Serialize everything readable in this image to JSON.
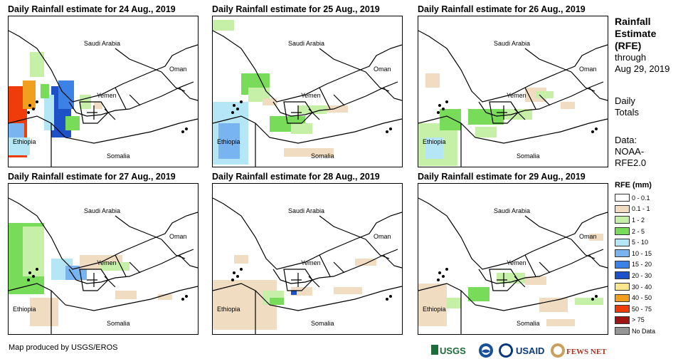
{
  "panels": [
    {
      "title": "Daily Rainfall estimate for 24 Aug., 2019"
    },
    {
      "title": "Daily Rainfall estimate for 25 Aug., 2019"
    },
    {
      "title": "Daily Rainfall estimate for 26 Aug., 2019"
    },
    {
      "title": "Daily Rainfall estimate for 27 Aug., 2019"
    },
    {
      "title": "Daily Rainfall estimate for 28 Aug., 2019"
    },
    {
      "title": "Daily Rainfall estimate for 29 Aug., 2019"
    }
  ],
  "map_labels": {
    "saudi": "Saudi Arabia",
    "oman": "Oman",
    "yemen": "Yemen",
    "ethiopia": "Ethiopia",
    "somalia": "Somalia"
  },
  "sidebar": {
    "title_line1": "Rainfall",
    "title_line2": "Estimate",
    "title_line3": "(RFE)",
    "through": "through",
    "date": "Aug 29, 2019",
    "daily": "Daily",
    "totals": "Totals",
    "data_label": "Data:",
    "data_source1": "NOAA-",
    "data_source2": "RFE2.0"
  },
  "legend": {
    "title": "RFE (mm)",
    "items": [
      {
        "label": "0 - 0.1",
        "color": "#ffffff"
      },
      {
        "label": "0.1 - 1",
        "color": "#f0dcc0"
      },
      {
        "label": "1 - 2",
        "color": "#c6f0a8"
      },
      {
        "label": "2 - 5",
        "color": "#78dc5a"
      },
      {
        "label": "5 - 10",
        "color": "#b4e6f5"
      },
      {
        "label": "10 - 15",
        "color": "#78b4f0"
      },
      {
        "label": "15 - 20",
        "color": "#3c82e6"
      },
      {
        "label": "20 - 30",
        "color": "#1e50c8"
      },
      {
        "label": "30 - 40",
        "color": "#fae68c"
      },
      {
        "label": "40 - 50",
        "color": "#f0a01e"
      },
      {
        "label": "50 - 75",
        "color": "#f03c0a"
      },
      {
        "label": "> 75",
        "color": "#a01414"
      },
      {
        "label": "No Data",
        "color": "#969696"
      }
    ]
  },
  "footer": {
    "credit": "Map produced by USGS/EROS",
    "logos": [
      "USGS",
      "NOAA",
      "USAID",
      "FEWS NET"
    ]
  }
}
